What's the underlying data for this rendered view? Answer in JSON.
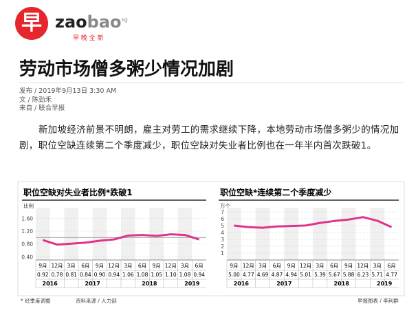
{
  "logo": {
    "mark": "早",
    "name_a": "zao",
    "name_b": "bao",
    "suffix": "sg",
    "tagline": "早 晚 全 新"
  },
  "article": {
    "title": "劳动市场僧多粥少情况加剧",
    "meta": [
      {
        "label": "发布",
        "value": "2019年9月13日 3:30 AM"
      },
      {
        "label": "文",
        "value": "陈劲禾"
      },
      {
        "label": "来自",
        "value": "联合早报"
      }
    ],
    "body": "新加坡经济前景不明朗，雇主对劳工的需求继续下降，本地劳动市场僧多粥少的情况加剧，职位空缺连续第二个季度减少，职位空缺对失业者比例也在一年半内首次跌破1。"
  },
  "charts": [
    {
      "type": "line",
      "title": "职位空缺对失业者比例*跌破1",
      "y_label": "比例",
      "color": "#e0338a",
      "categories": [
        "9月",
        "12月",
        "3月",
        "6月",
        "9月",
        "12月",
        "3月",
        "6月",
        "9月",
        "12月",
        "3月",
        "6月"
      ],
      "values": [
        0.92,
        0.78,
        0.81,
        0.84,
        0.9,
        0.94,
        1.06,
        1.08,
        1.05,
        1.1,
        1.08,
        0.94
      ],
      "value_labels": [
        "0.92",
        "0.78",
        "0.81",
        "0.84",
        "0.90",
        "0.94",
        "1.06",
        "1.08",
        "1.05",
        "1.10",
        "1.08",
        "0.94"
      ],
      "years": [
        {
          "label": "2016",
          "quarters": 2
        },
        {
          "label": "2017",
          "quarters": 4
        },
        {
          "label": "2018",
          "quarters": 4
        },
        {
          "label": "2019",
          "quarters": 2
        }
      ],
      "ylim": [
        0.3,
        1.8
      ],
      "yticks": [
        {
          "value": 0.4,
          "label": "0.40"
        },
        {
          "value": 0.8,
          "label": "0.80"
        },
        {
          "value": 1.2,
          "label": "1.20"
        },
        {
          "value": 1.6,
          "label": "1.60"
        }
      ],
      "reference_line": 1,
      "grid": true
    },
    {
      "type": "line",
      "title": "职位空缺*连续第二个季度减少",
      "y_label": "万个",
      "color": "#e0338a",
      "categories": [
        "9月",
        "12月",
        "3月",
        "6月",
        "9月",
        "12月",
        "3月",
        "6月",
        "9月",
        "12月",
        "3月",
        "6月"
      ],
      "values": [
        5,
        4.77,
        4.69,
        4.87,
        4.94,
        5.01,
        5.39,
        5.67,
        5.88,
        6.23,
        5.71,
        4.77
      ],
      "value_labels": [
        "5.00",
        "4.77",
        "4.69",
        "4.87",
        "4.94",
        "5.01",
        "5.39",
        "5.67",
        "5.88",
        "6.23",
        "5.71",
        "4.77"
      ],
      "years": [
        {
          "label": "2016",
          "quarters": 2
        },
        {
          "label": "2017",
          "quarters": 4
        },
        {
          "label": "2018",
          "quarters": 4
        },
        {
          "label": "2019",
          "quarters": 2
        }
      ],
      "ylim": [
        0,
        7
      ],
      "yticks": [
        1,
        2,
        3,
        4,
        5,
        6,
        7
      ],
      "grid": true
    }
  ],
  "footer": {
    "note": "* 经季度调整",
    "source": "资料来源 / 人力部",
    "credit": "早报图表 / 李利群"
  }
}
